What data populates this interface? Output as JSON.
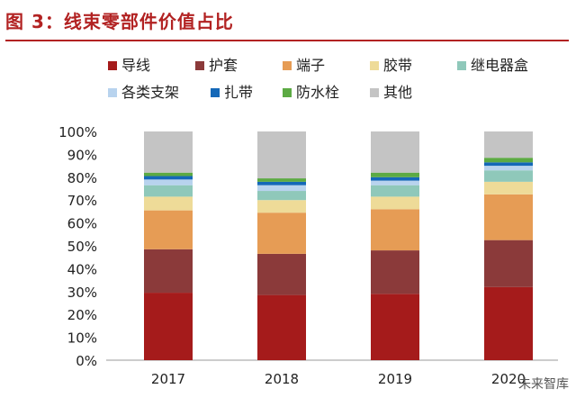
{
  "title": "图 3：线束零部件价值占比",
  "watermark": "未来智库",
  "colors": {
    "导线": "#a51b1b",
    "护套": "#8b3a3a",
    "端子": "#e69c55",
    "胶带": "#eedb98",
    "继电器盒": "#8fc8ba",
    "各类支架": "#b8d3ee",
    "扎带": "#1468b8",
    "防水栓": "#5caa43",
    "其他": "#c4c4c4"
  },
  "chart_data": {
    "type": "bar",
    "stacked": true,
    "categories": [
      "2017",
      "2018",
      "2019",
      "2020"
    ],
    "ylim": [
      0,
      100
    ],
    "yticks": [
      "0%",
      "10%",
      "20%",
      "30%",
      "40%",
      "50%",
      "60%",
      "70%",
      "80%",
      "90%",
      "100%"
    ],
    "legend_position": "top",
    "series": [
      {
        "name": "导线",
        "values": [
          29.5,
          28.5,
          29.0,
          32.0
        ]
      },
      {
        "name": "护套",
        "values": [
          19.0,
          18.0,
          19.0,
          20.5
        ]
      },
      {
        "name": "端子",
        "values": [
          17.0,
          18.0,
          18.0,
          20.0
        ]
      },
      {
        "name": "胶带",
        "values": [
          6.0,
          5.5,
          5.5,
          5.5
        ]
      },
      {
        "name": "继电器盒",
        "values": [
          5.0,
          4.0,
          5.0,
          5.0
        ]
      },
      {
        "name": "各类支架",
        "values": [
          2.5,
          2.5,
          2.0,
          2.0
        ]
      },
      {
        "name": "扎带",
        "values": [
          1.5,
          1.5,
          1.5,
          1.5
        ]
      },
      {
        "name": "防水栓",
        "values": [
          1.5,
          1.5,
          2.0,
          2.0
        ]
      },
      {
        "name": "其他",
        "values": [
          18.0,
          20.5,
          18.0,
          11.5
        ]
      }
    ]
  }
}
